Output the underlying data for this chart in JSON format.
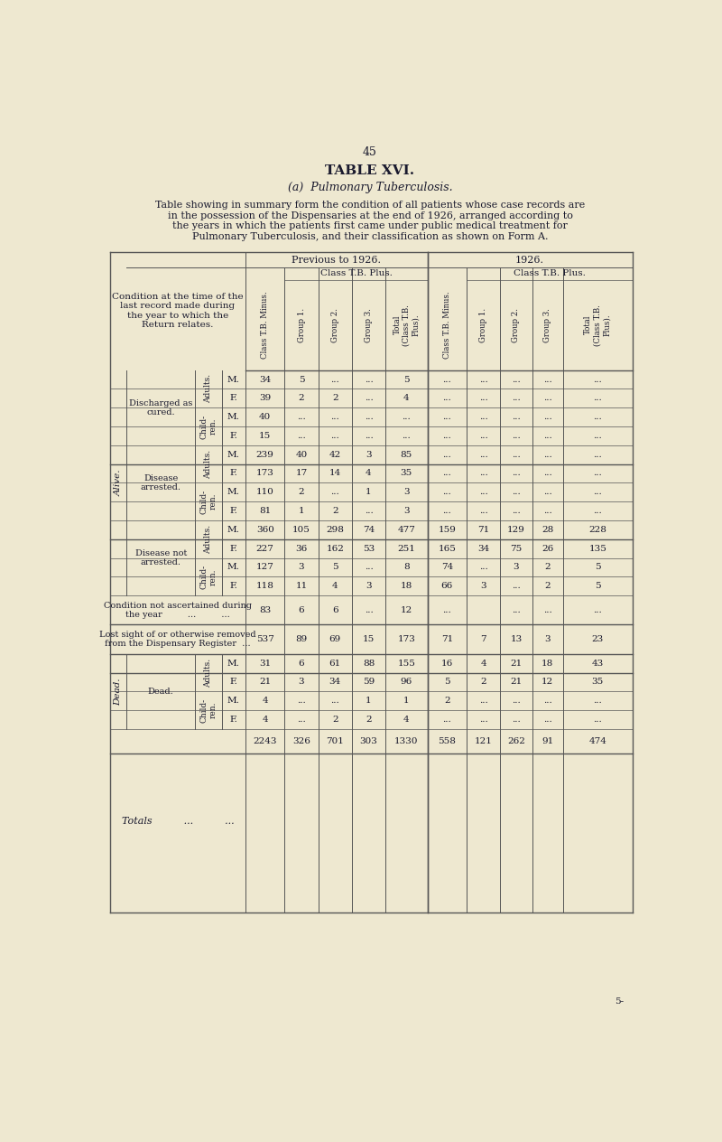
{
  "page_number": "45",
  "title": "TABLE XVI.",
  "subtitle": "(a)  Pulmonary Tuberculosis.",
  "description_lines": [
    "Table showing in summary form the condition of all patients whose case records are",
    "in the possession of the Dispensaries at the end of 1926, arranged according to",
    "the years in which the patients first came under public medical treatment for",
    "Pulmonary Tuberculosis, and their classification as shown on Form A."
  ],
  "bg_color": "#eee8d0",
  "text_color": "#1a1a2e",
  "line_color": "#555555",
  "col_header_prev": "Previous to 1926.",
  "col_header_1926": "1926.",
  "col_sub_plus": "Class T.B. Plus.",
  "col_labels": [
    "Class T.B. Minus.",
    "Group 1.",
    "Group 2.",
    "Group 3.",
    "Total\n(Class T.B.\nPlus).",
    "Class T.B. Minus.",
    "Group 1.",
    "Group 2.",
    "Group 3.",
    "Total\n(Class T.B.\nPlus)."
  ],
  "rows": [
    {
      "section": "Alive",
      "condition": "Discharged as\ncured.",
      "sub": "Adults.",
      "sex": "M.",
      "vals": [
        "34",
        "5",
        "...",
        "...",
        "5",
        "...",
        "...",
        "...",
        "...",
        "..."
      ]
    },
    {
      "section": "Alive",
      "condition": "Discharged as\ncured.",
      "sub": "Adults.",
      "sex": "F.",
      "vals": [
        "39",
        "2",
        "2",
        "...",
        "4",
        "...",
        "...",
        "...",
        "...",
        "..."
      ]
    },
    {
      "section": "Alive",
      "condition": "Discharged as\ncured.",
      "sub": "Child-\nren.",
      "sex": "M.",
      "vals": [
        "40",
        "...",
        "...",
        "...",
        "...",
        "...",
        "...",
        "...",
        "...",
        "..."
      ]
    },
    {
      "section": "Alive",
      "condition": "Discharged as\ncured.",
      "sub": "Child-\nren.",
      "sex": "F.",
      "vals": [
        "15",
        "...",
        "...",
        "...",
        "...",
        "...",
        "...",
        "...",
        "...",
        "..."
      ]
    },
    {
      "section": "Alive",
      "condition": "Disease\narrested.",
      "sub": "Adults.",
      "sex": "M.",
      "vals": [
        "239",
        "40",
        "42",
        "3",
        "85",
        "...",
        "...",
        "...",
        "...",
        "..."
      ]
    },
    {
      "section": "Alive",
      "condition": "Disease\narrested.",
      "sub": "Adults.",
      "sex": "F.",
      "vals": [
        "173",
        "17",
        "14",
        "4",
        "35",
        "...",
        "...",
        "...",
        "...",
        "..."
      ]
    },
    {
      "section": "Alive",
      "condition": "Disease\narrested.",
      "sub": "Child-\nren.",
      "sex": "M.",
      "vals": [
        "110",
        "2",
        "...",
        "1",
        "3",
        "...",
        "...",
        "...",
        "...",
        "..."
      ]
    },
    {
      "section": "Alive",
      "condition": "Disease\narrested.",
      "sub": "Child-\nren.",
      "sex": "F.",
      "vals": [
        "81",
        "1",
        "2",
        "...",
        "3",
        "...",
        "...",
        "...",
        "...",
        "..."
      ]
    },
    {
      "section": "Alive",
      "condition": "Disease not\narrested.",
      "sub": "Adults.",
      "sex": "M.",
      "vals": [
        "360",
        "105",
        "298",
        "74",
        "477",
        "159",
        "71",
        "129",
        "28",
        "228"
      ]
    },
    {
      "section": "Alive",
      "condition": "Disease not\narrested.",
      "sub": "Adults.",
      "sex": "F.",
      "vals": [
        "227",
        "36",
        "162",
        "53",
        "251",
        "165",
        "34",
        "75",
        "26",
        "135"
      ]
    },
    {
      "section": "Alive",
      "condition": "Disease not\narrested.",
      "sub": "Child-\nren.",
      "sex": "M.",
      "vals": [
        "127",
        "3",
        "5",
        "...",
        "8",
        "74",
        "...",
        "3",
        "2",
        "5"
      ]
    },
    {
      "section": "Alive",
      "condition": "Disease not\narrested.",
      "sub": "Child-\nren.",
      "sex": "F.",
      "vals": [
        "118",
        "11",
        "4",
        "3",
        "18",
        "66",
        "3",
        "...",
        "2",
        "5"
      ]
    },
    {
      "section": "none",
      "condition": "Condition not ascertained during\nthe year          ...          ...",
      "sub": "",
      "sex": "",
      "vals": [
        "83",
        "6",
        "6",
        "...",
        "12",
        "...",
        "",
        "...",
        "...",
        "..."
      ]
    },
    {
      "section": "none",
      "condition": "Lost sight of or otherwise removed\nfrom the Dispensary Register  ...",
      "sub": "",
      "sex": "",
      "vals": [
        "537",
        "89",
        "69",
        "15",
        "173",
        "71",
        "7",
        "13",
        "3",
        "23"
      ]
    },
    {
      "section": "Dead",
      "condition": "Dead.",
      "sub": "Adults.",
      "sex": "M.",
      "vals": [
        "31",
        "6",
        "61",
        "88",
        "155",
        "16",
        "4",
        "21",
        "18",
        "43"
      ]
    },
    {
      "section": "Dead",
      "condition": "Dead.",
      "sub": "Adults.",
      "sex": "F.",
      "vals": [
        "21",
        "3",
        "34",
        "59",
        "96",
        "5",
        "2",
        "21",
        "12",
        "35"
      ]
    },
    {
      "section": "Dead",
      "condition": "Dead.",
      "sub": "Child-\nren.",
      "sex": "M.",
      "vals": [
        "4",
        "...",
        "...",
        "1",
        "1",
        "2",
        "...",
        "...",
        "...",
        "..."
      ]
    },
    {
      "section": "Dead",
      "condition": "Dead.",
      "sub": "Child-\nren.",
      "sex": "F.",
      "vals": [
        "4",
        "...",
        "2",
        "2",
        "4",
        "...",
        "...",
        "...",
        "...",
        "..."
      ]
    },
    {
      "section": "totals",
      "condition": "Totals          ...          ...",
      "sub": "",
      "sex": "",
      "vals": [
        "2243",
        "326",
        "701",
        "303",
        "1330",
        "558",
        "121",
        "262",
        "91",
        "474"
      ]
    }
  ],
  "footer": "5-"
}
